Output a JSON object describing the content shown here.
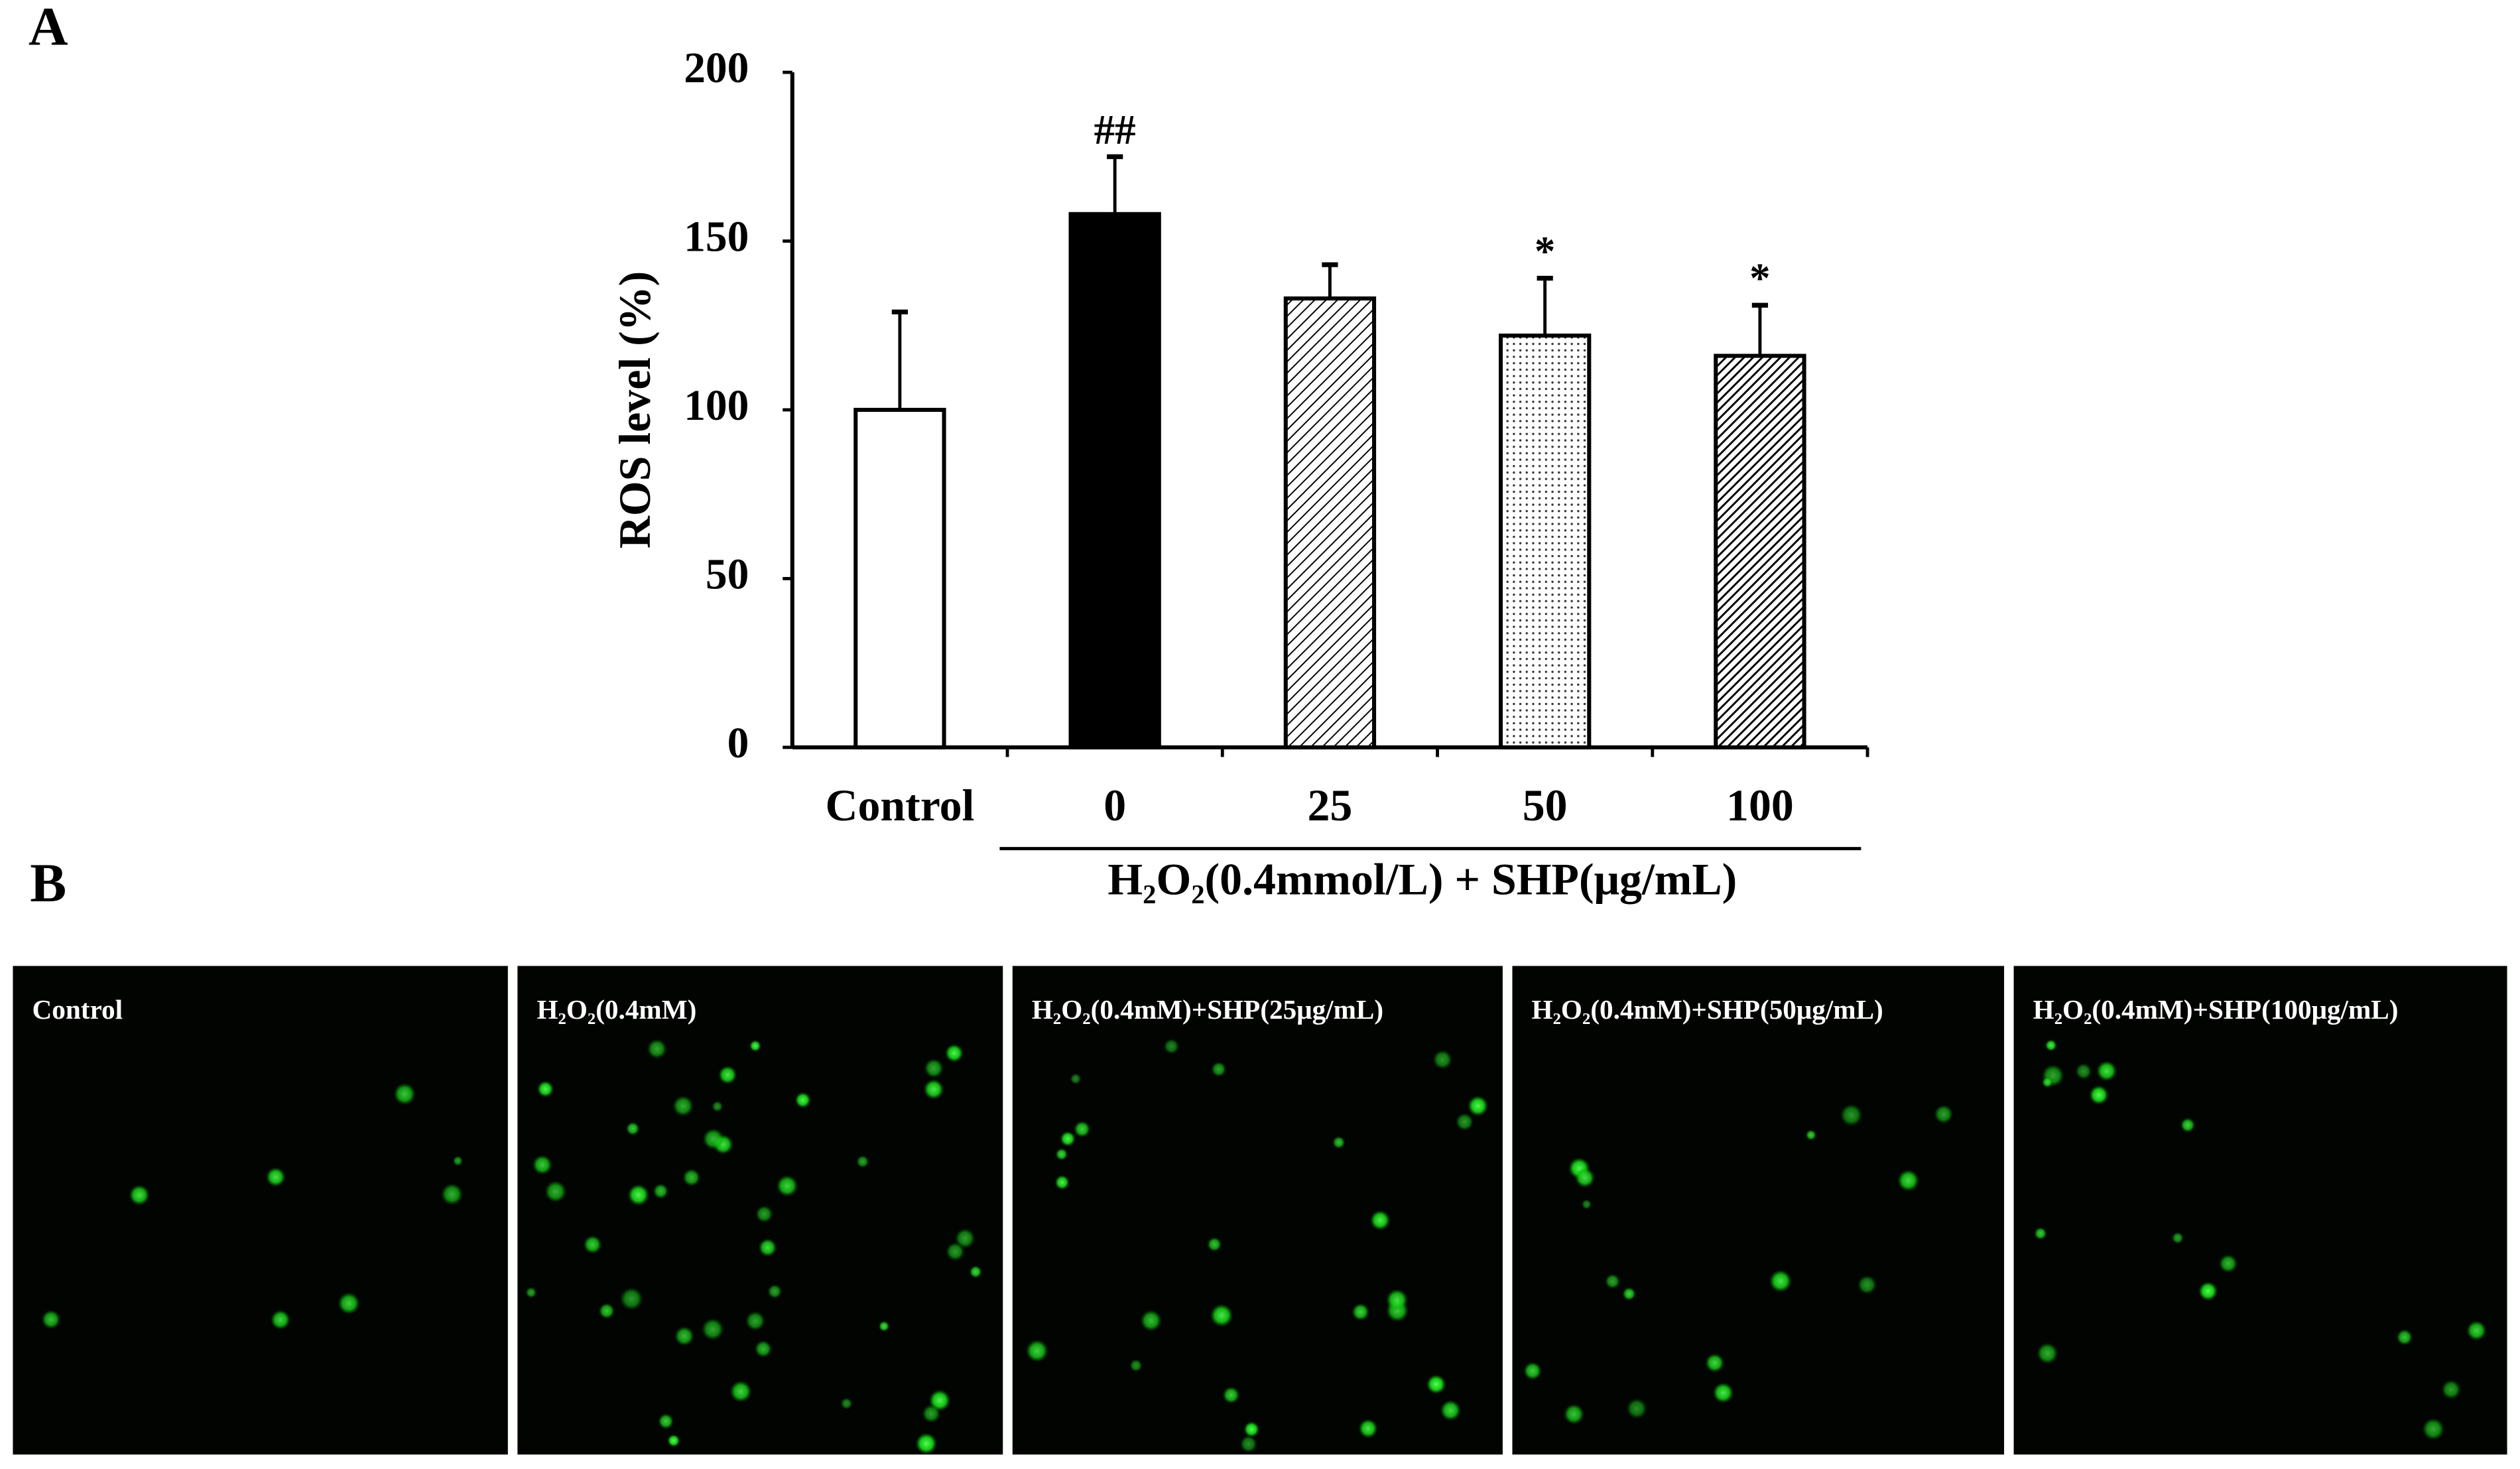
{
  "chart_data": {
    "type": "bar",
    "panel_label": "A",
    "ylabel": "ROS level (%)",
    "categories": [
      "Control",
      "0",
      "25",
      "50",
      "100"
    ],
    "values": [
      100,
      158,
      133,
      122,
      116
    ],
    "errors": [
      29,
      17,
      10,
      17,
      15
    ],
    "annotations": [
      null,
      "##",
      null,
      "*",
      "*"
    ],
    "fills": [
      "white",
      "black",
      "hatch",
      "dots",
      "dense-hatch"
    ],
    "group_label": "H₂O₂(0.4mmol/L) + SHP(μg/mL)",
    "ylim": [
      0,
      200
    ],
    "yticks": [
      0,
      50,
      100,
      150,
      200
    ],
    "grid": false
  },
  "panel_b": {
    "label": "B",
    "images": [
      {
        "caption": "Control"
      },
      {
        "caption": "H₂O₂(0.4mM)"
      },
      {
        "caption": "H₂O₂(0.4mM)+SHP(25μg/mL)"
      },
      {
        "caption": "H₂O₂(0.4mM)+SHP(50μg/mL)"
      },
      {
        "caption": "H₂O₂(0.4mM)+SHP(100μg/mL)"
      }
    ]
  }
}
